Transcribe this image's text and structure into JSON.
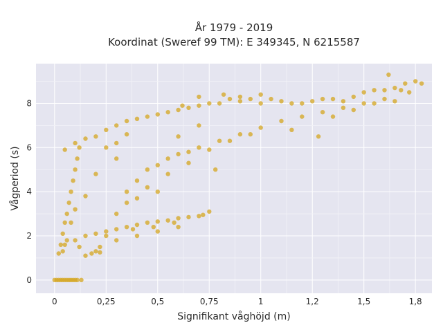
{
  "chart_data": {
    "type": "scatter",
    "title": [
      "År 1979 - 2019",
      "Koordinat (Sweref 99 TM): E 349345, N 6215587"
    ],
    "xlabel": "Signifikant våghöjd (m)",
    "ylabel": "Vågperiod (s)",
    "xlim": [
      -0.09,
      1.83
    ],
    "ylim": [
      -0.6,
      9.8
    ],
    "x_ticks": [
      0,
      0.25,
      0.5,
      0.75,
      1,
      1.25,
      1.5,
      1.75
    ],
    "x_tick_labels": [
      "0",
      "0,25",
      "0,5",
      "0,75",
      "1",
      "1,2",
      "1,5",
      "1,8"
    ],
    "y_ticks": [
      0,
      2,
      4,
      6,
      8
    ],
    "y_tick_labels": [
      "0",
      "2",
      "4",
      "6",
      "8"
    ],
    "grid": true,
    "marker_color": "#D4A520",
    "plot_background": "#E5E5F0",
    "series": [
      {
        "name": "main_cloud",
        "points": [
          [
            0.02,
            1.2
          ],
          [
            0.03,
            1.6
          ],
          [
            0.04,
            2.1
          ],
          [
            0.05,
            2.6
          ],
          [
            0.06,
            3.0
          ],
          [
            0.07,
            3.5
          ],
          [
            0.08,
            4.0
          ],
          [
            0.09,
            4.5
          ],
          [
            0.1,
            5.0
          ],
          [
            0.11,
            5.5
          ],
          [
            0.12,
            6.0
          ],
          [
            0.05,
            5.9
          ],
          [
            0.1,
            6.2
          ],
          [
            0.15,
            6.4
          ],
          [
            0.2,
            6.5
          ],
          [
            0.25,
            6.8
          ],
          [
            0.3,
            7.0
          ],
          [
            0.35,
            7.2
          ],
          [
            0.4,
            7.3
          ],
          [
            0.45,
            7.4
          ],
          [
            0.5,
            7.5
          ],
          [
            0.55,
            7.6
          ],
          [
            0.6,
            7.7
          ],
          [
            0.65,
            7.8
          ],
          [
            0.7,
            7.9
          ],
          [
            0.75,
            8.0
          ],
          [
            0.8,
            8.0
          ],
          [
            0.85,
            8.2
          ],
          [
            0.9,
            8.1
          ],
          [
            0.95,
            8.2
          ],
          [
            1.0,
            8.0
          ],
          [
            1.05,
            8.2
          ],
          [
            1.1,
            8.1
          ],
          [
            1.15,
            8.0
          ],
          [
            1.2,
            8.0
          ],
          [
            1.25,
            8.1
          ],
          [
            1.3,
            8.2
          ],
          [
            1.35,
            8.2
          ],
          [
            1.4,
            8.1
          ],
          [
            1.45,
            8.3
          ],
          [
            1.5,
            8.5
          ],
          [
            1.55,
            8.6
          ],
          [
            1.6,
            8.6
          ],
          [
            1.65,
            8.7
          ],
          [
            1.7,
            8.9
          ],
          [
            1.75,
            9.0
          ],
          [
            1.78,
            8.9
          ],
          [
            1.62,
            9.3
          ],
          [
            0.15,
            1.1
          ],
          [
            0.2,
            1.3
          ],
          [
            0.25,
            2.0
          ],
          [
            0.3,
            3.0
          ],
          [
            0.35,
            4.0
          ],
          [
            0.4,
            4.5
          ],
          [
            0.45,
            5.0
          ],
          [
            0.5,
            5.2
          ],
          [
            0.55,
            5.5
          ],
          [
            0.6,
            5.7
          ],
          [
            0.65,
            5.8
          ],
          [
            0.7,
            6.0
          ],
          [
            0.8,
            6.3
          ],
          [
            0.9,
            6.6
          ],
          [
            1.0,
            6.9
          ],
          [
            1.1,
            7.2
          ],
          [
            1.2,
            7.4
          ],
          [
            1.3,
            7.6
          ],
          [
            1.4,
            7.8
          ],
          [
            1.5,
            8.0
          ],
          [
            1.6,
            8.2
          ],
          [
            1.65,
            8.1
          ],
          [
            1.68,
            8.6
          ],
          [
            1.72,
            8.5
          ],
          [
            1.55,
            8.0
          ],
          [
            1.45,
            7.7
          ],
          [
            1.28,
            6.5
          ],
          [
            1.35,
            7.4
          ],
          [
            1.15,
            6.8
          ],
          [
            0.25,
            6.0
          ],
          [
            0.3,
            5.5
          ],
          [
            0.2,
            4.8
          ],
          [
            0.15,
            3.8
          ],
          [
            0.1,
            3.2
          ],
          [
            0.08,
            2.6
          ],
          [
            0.06,
            1.8
          ],
          [
            0.04,
            1.3
          ],
          [
            0.12,
            1.5
          ],
          [
            0.18,
            1.2
          ],
          [
            0.22,
            1.25
          ],
          [
            0.35,
            3.5
          ],
          [
            0.45,
            4.2
          ],
          [
            0.55,
            4.8
          ],
          [
            0.65,
            5.3
          ],
          [
            0.75,
            5.9
          ],
          [
            0.85,
            6.3
          ],
          [
            0.95,
            6.6
          ],
          [
            0.78,
            5.0
          ],
          [
            0.62,
            7.9
          ],
          [
            0.82,
            8.4
          ],
          [
            0.9,
            8.3
          ],
          [
            1.0,
            8.4
          ],
          [
            0.7,
            8.3
          ],
          [
            0.5,
            4.0
          ],
          [
            0.4,
            3.7
          ],
          [
            0.6,
            6.5
          ],
          [
            0.7,
            7.0
          ],
          [
            0.3,
            6.2
          ],
          [
            0.35,
            6.6
          ]
        ]
      },
      {
        "name": "lower_branch",
        "points": [
          [
            0.05,
            1.6
          ],
          [
            0.1,
            1.8
          ],
          [
            0.15,
            2.0
          ],
          [
            0.2,
            2.1
          ],
          [
            0.25,
            2.2
          ],
          [
            0.3,
            2.3
          ],
          [
            0.35,
            2.4
          ],
          [
            0.4,
            2.5
          ],
          [
            0.45,
            2.6
          ],
          [
            0.5,
            2.65
          ],
          [
            0.55,
            2.7
          ],
          [
            0.6,
            2.8
          ],
          [
            0.65,
            2.85
          ],
          [
            0.7,
            2.9
          ],
          [
            0.72,
            2.95
          ],
          [
            0.75,
            3.1
          ],
          [
            0.22,
            1.5
          ],
          [
            0.3,
            1.8
          ],
          [
            0.4,
            2.0
          ],
          [
            0.5,
            2.2
          ],
          [
            0.6,
            2.4
          ],
          [
            0.38,
            2.3
          ],
          [
            0.48,
            2.4
          ],
          [
            0.58,
            2.6
          ]
        ]
      },
      {
        "name": "zero_period",
        "points": [
          [
            0.0,
            0.0
          ],
          [
            0.01,
            0.0
          ],
          [
            0.02,
            0.0
          ],
          [
            0.03,
            0.0
          ],
          [
            0.04,
            0.0
          ],
          [
            0.05,
            0.0
          ],
          [
            0.06,
            0.0
          ],
          [
            0.07,
            0.0
          ],
          [
            0.08,
            0.0
          ],
          [
            0.09,
            0.0
          ],
          [
            0.1,
            0.0
          ],
          [
            0.11,
            0.0
          ],
          [
            0.13,
            0.0
          ]
        ]
      }
    ]
  }
}
